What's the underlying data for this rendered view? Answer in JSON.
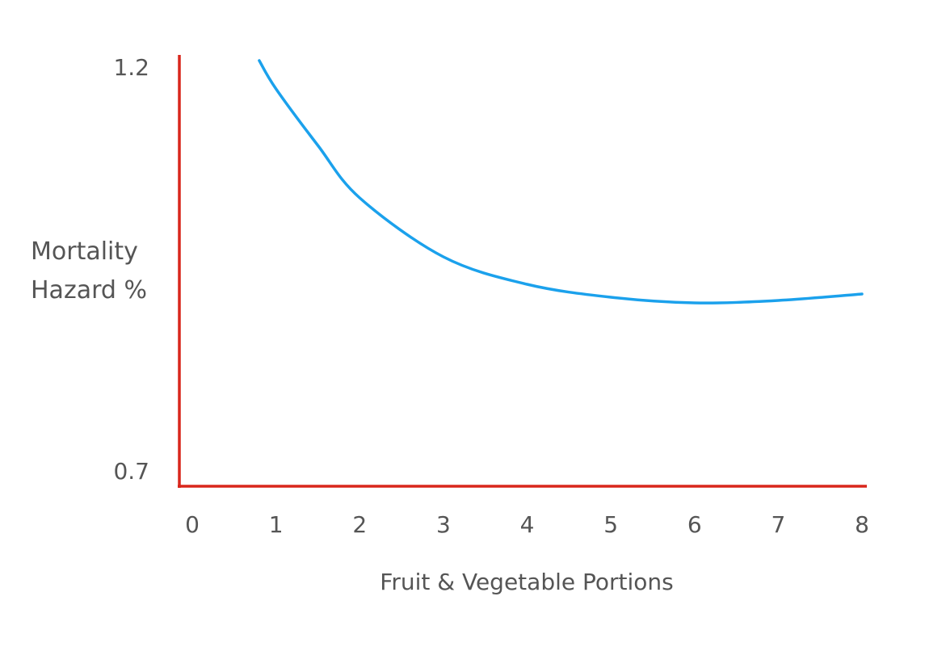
{
  "chart_data": {
    "type": "line",
    "x_label": "Fruit & Vegetable Portions",
    "y_label": "Mortality Hazard %",
    "series": [
      {
        "name": "Mortality hazard",
        "color": "#1ba1ec",
        "x": [
          0.8,
          1,
          1.5,
          2,
          3,
          4,
          5,
          6,
          7,
          8
        ],
        "values": [
          1.21,
          1.175,
          1.105,
          1.04,
          0.967,
          0.933,
          0.917,
          0.91,
          0.913,
          0.921
        ]
      }
    ],
    "xlim": [
      0,
      8
    ],
    "xticks": [
      0,
      1,
      2,
      3,
      4,
      5,
      6,
      7,
      8
    ],
    "ylim": [
      0.7,
      1.2
    ],
    "yticks": [
      0.7,
      1.2
    ],
    "axis_color": "#d9261c"
  }
}
